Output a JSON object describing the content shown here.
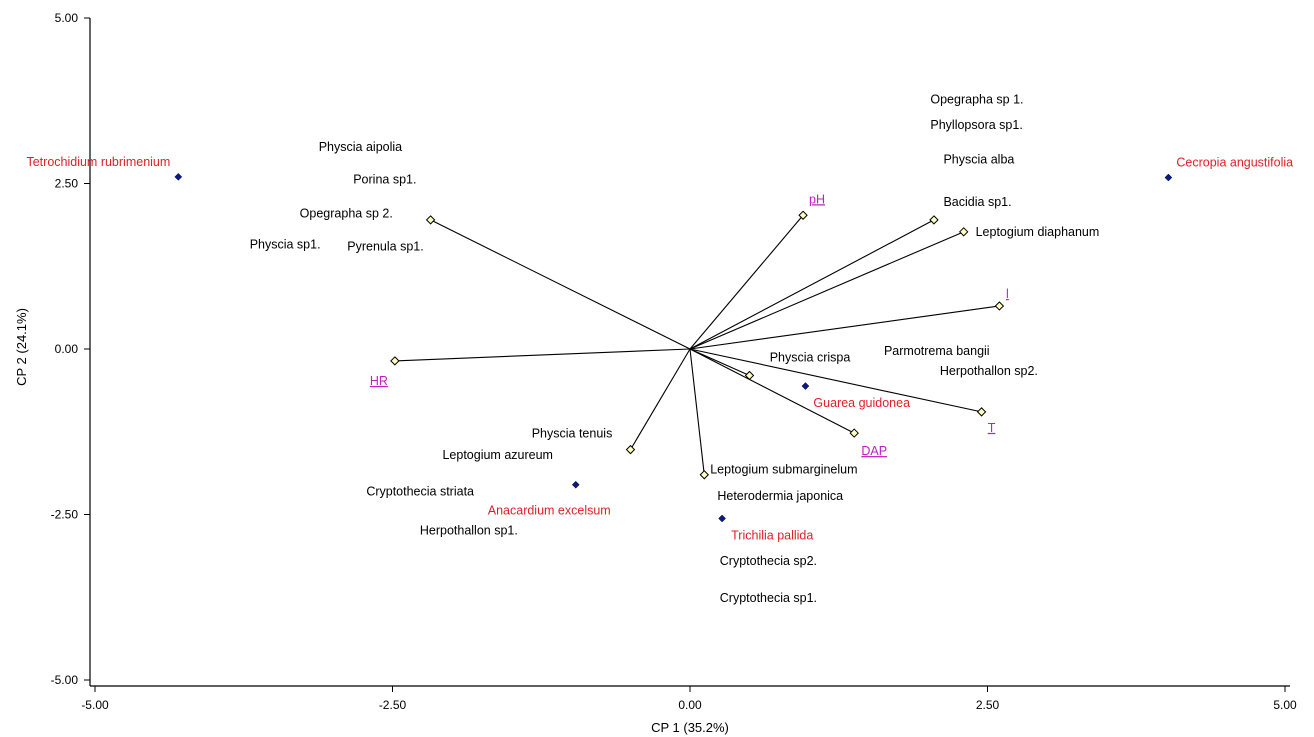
{
  "chart_data": {
    "type": "scatter",
    "xlabel": "CP 1 (35.2%)",
    "ylabel": "CP 2 (24.1%)",
    "xlim": [
      -5,
      5
    ],
    "ylim": [
      -5,
      5
    ],
    "x_ticks": [
      "-5.00",
      "-2.50",
      "0.00",
      "2.50",
      "5.00"
    ],
    "y_ticks": [
      "5.00",
      "2.50",
      "0.00",
      "-2.50",
      "-5.00"
    ],
    "colors": {
      "site": "#e0202a",
      "site_point": "#0a1a8c",
      "env": "#c020c0",
      "species": "#000000",
      "vector_head": "#ffffc0"
    },
    "sites": [
      {
        "name": "Tetrochidium rubrimenium",
        "x": -4.3,
        "y": 2.6
      },
      {
        "name": "Cecropia angustifolia",
        "x": 4.02,
        "y": 2.59
      },
      {
        "name": "Guarea guidonea",
        "x": 0.97,
        "y": -0.56
      },
      {
        "name": "Anacardium excelsum",
        "x": -0.96,
        "y": -2.05
      },
      {
        "name": "Trichilia pallida",
        "x": 0.27,
        "y": -2.56
      }
    ],
    "env_vectors": [
      {
        "name": "pH",
        "x": 0.95,
        "y": 2.02
      },
      {
        "name": "HR",
        "x": -2.48,
        "y": -0.18
      },
      {
        "name": "l",
        "x": 2.6,
        "y": 0.65
      },
      {
        "name": "T",
        "x": 2.45,
        "y": -0.95
      },
      {
        "name": "DAP",
        "x": 1.38,
        "y": -1.27
      }
    ],
    "species_vectors": [
      {
        "x": -2.18,
        "y": 1.95
      },
      {
        "x": 2.05,
        "y": 1.95
      },
      {
        "x": 2.3,
        "y": 1.77
      },
      {
        "x": 0.5,
        "y": -0.4
      },
      {
        "x": -0.5,
        "y": -1.52
      },
      {
        "x": 0.12,
        "y": -1.9
      }
    ],
    "species": [
      {
        "name": "Opegrapha sp 1.",
        "x": 2.02,
        "y": 3.77
      },
      {
        "name": "Phyllopsora sp1.",
        "x": 2.02,
        "y": 3.38
      },
      {
        "name": "Physcia alba",
        "x": 2.13,
        "y": 2.86
      },
      {
        "name": "Bacidia sp1.",
        "x": 2.13,
        "y": 2.22
      },
      {
        "name": "Leptogium diaphanum",
        "x": 2.4,
        "y": 1.77
      },
      {
        "name": "Physcia aipolia",
        "x": -3.12,
        "y": 3.05
      },
      {
        "name": "Porina sp1.",
        "x": -2.83,
        "y": 2.56
      },
      {
        "name": "Opegrapha sp 2.",
        "x": -3.28,
        "y": 2.05
      },
      {
        "name": "Physcia sp1.",
        "x": -3.7,
        "y": 1.58
      },
      {
        "name": "Pyrenula sp1.",
        "x": -2.88,
        "y": 1.55
      },
      {
        "name": "Physcia crispa",
        "x": 0.67,
        "y": -0.13
      },
      {
        "name": "Parmotrema bangii",
        "x": 1.63,
        "y": -0.03
      },
      {
        "name": "Herpothallon sp2.",
        "x": 2.1,
        "y": -0.33
      },
      {
        "name": "Physcia tenuis",
        "x": -1.33,
        "y": -1.28
      },
      {
        "name": "Leptogium azureum",
        "x": -2.08,
        "y": -1.6
      },
      {
        "name": "Cryptothecia striata",
        "x": -2.72,
        "y": -2.15
      },
      {
        "name": "Herpothallon sp1.",
        "x": -2.27,
        "y": -2.74
      },
      {
        "name": "Leptogium submarginelum",
        "x": 0.17,
        "y": -1.82
      },
      {
        "name": "Heterodermia japonica",
        "x": 0.23,
        "y": -2.22
      },
      {
        "name": "Cryptothecia sp2.",
        "x": 0.25,
        "y": -3.2
      },
      {
        "name": "Cryptothecia sp1.",
        "x": 0.25,
        "y": -3.76
      }
    ]
  }
}
